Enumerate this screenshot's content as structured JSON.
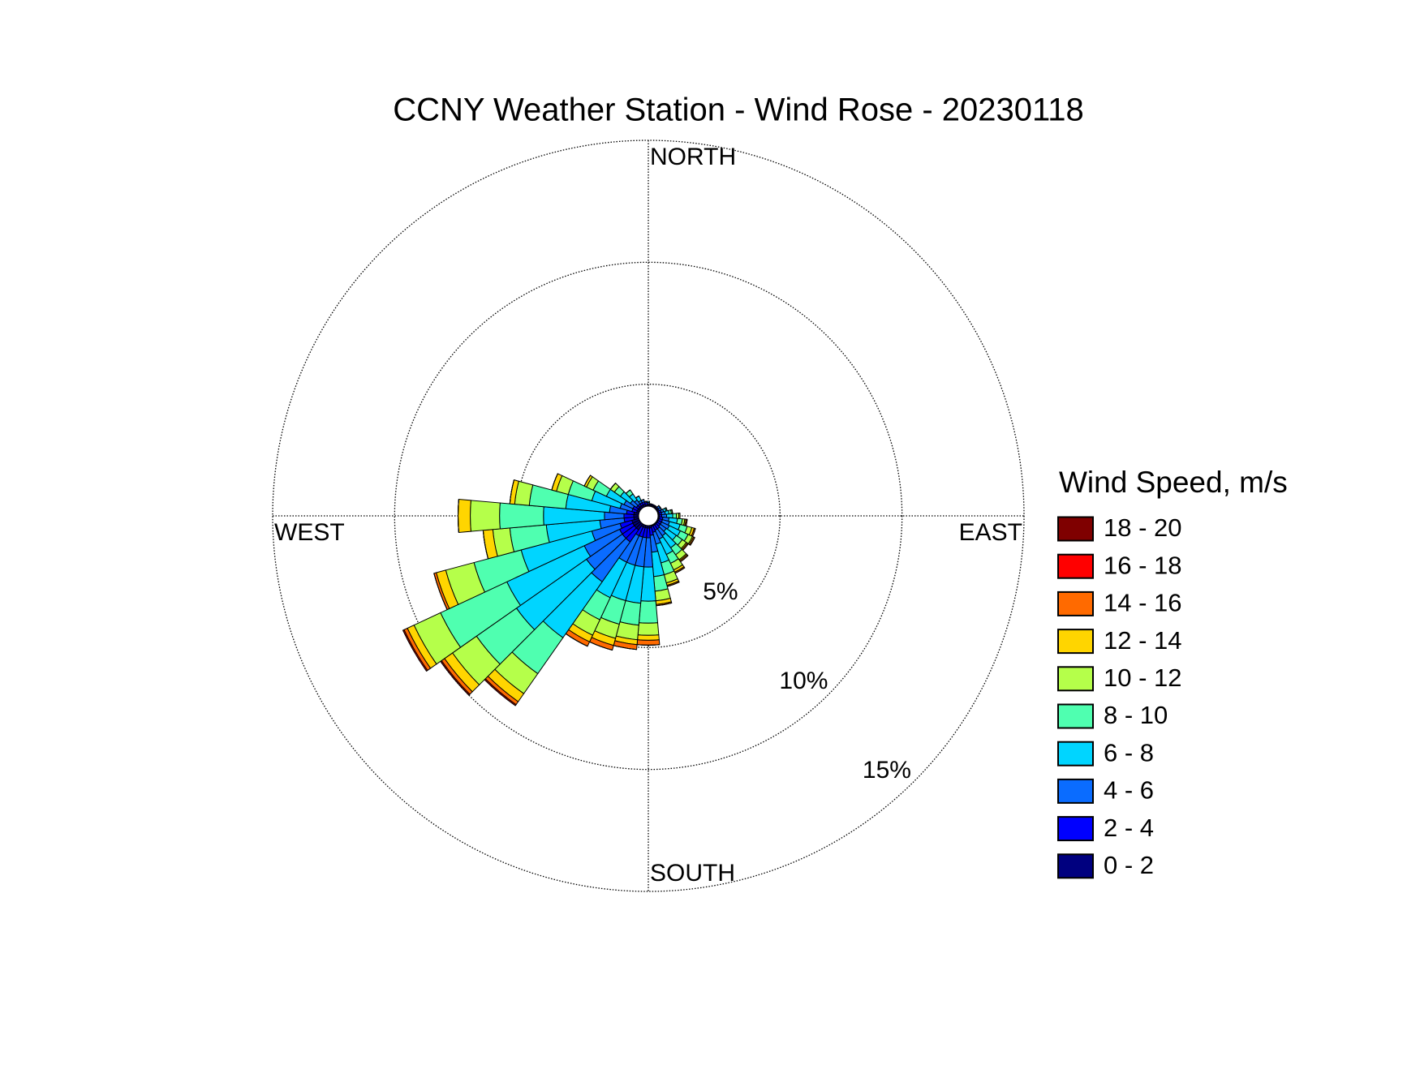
{
  "chart_data": {
    "type": "windrose",
    "title": "CCNY Weather Station - Wind Rose - 20230118",
    "x": [
      0,
      10,
      20,
      30,
      40,
      50,
      60,
      70,
      80,
      90,
      100,
      110,
      120,
      130,
      140,
      150,
      160,
      170,
      180,
      190,
      200,
      210,
      220,
      230,
      240,
      250,
      260,
      270,
      280,
      290,
      300,
      310,
      320,
      330,
      340,
      350
    ],
    "series": [
      {
        "name": "0 - 2",
        "color": "#00007f",
        "values": [
          0.05,
          0.05,
          0.05,
          0.05,
          0.05,
          0.05,
          0.05,
          0.05,
          0.05,
          0.05,
          0.05,
          0.05,
          0.05,
          0.05,
          0.05,
          0.05,
          0.05,
          0.1,
          0.1,
          0.1,
          0.1,
          0.1,
          0.3,
          0.3,
          0.3,
          0.3,
          0.2,
          0.2,
          0.2,
          0.1,
          0.1,
          0.1,
          0.1,
          0.1,
          0.1,
          0.05
        ]
      },
      {
        "name": "2 - 4",
        "color": "#0000ff",
        "values": [
          0.05,
          0.05,
          0.05,
          0.05,
          0.05,
          0.05,
          0.05,
          0.1,
          0.1,
          0.1,
          0.15,
          0.15,
          0.15,
          0.15,
          0.2,
          0.2,
          0.25,
          0.3,
          0.4,
          0.4,
          0.4,
          0.4,
          0.6,
          0.6,
          0.6,
          0.5,
          0.4,
          0.4,
          0.3,
          0.2,
          0.2,
          0.1,
          0.1,
          0.1,
          0.1,
          0.1
        ]
      },
      {
        "name": "4 - 6",
        "color": "#0a6cff",
        "values": [
          0.05,
          0,
          0,
          0,
          0,
          0.1,
          0.1,
          0.1,
          0.15,
          0.2,
          0.25,
          0.3,
          0.35,
          0.3,
          0.35,
          0.4,
          0.5,
          0.7,
          1.2,
          1.2,
          1.2,
          1.2,
          2.0,
          1.8,
          1.6,
          1.2,
          1.0,
          0.8,
          0.7,
          0.5,
          0.4,
          0.3,
          0.2,
          0.1,
          0.1,
          0.05
        ]
      },
      {
        "name": "6 - 8",
        "color": "#00d5ff",
        "values": [
          0.05,
          0,
          0,
          0,
          0,
          0,
          0,
          0.1,
          0.15,
          0.25,
          0.35,
          0.45,
          0.5,
          0.5,
          0.6,
          0.7,
          0.8,
          1.0,
          1.4,
          1.5,
          1.5,
          1.6,
          2.8,
          3.5,
          3.5,
          3.0,
          2.2,
          2.5,
          1.8,
          1.2,
          0.8,
          0.5,
          0.3,
          0.2,
          0,
          0
        ]
      },
      {
        "name": "8 - 10",
        "color": "#4fffb0",
        "values": [
          0,
          0,
          0,
          0,
          0,
          0,
          0,
          0.05,
          0.1,
          0.15,
          0.2,
          0.3,
          0.35,
          0.3,
          0.35,
          0.4,
          0.5,
          0.6,
          0.9,
          0.9,
          1.0,
          1.0,
          1.8,
          2.0,
          3.0,
          2.0,
          1.5,
          1.8,
          1.5,
          1.0,
          0.6,
          0.3,
          0.2,
          0,
          0,
          0
        ]
      },
      {
        "name": "10 - 12",
        "color": "#b5ff4a",
        "values": [
          0,
          0,
          0,
          0,
          0,
          0,
          0,
          0,
          0.05,
          0.1,
          0.1,
          0.2,
          0.2,
          0.2,
          0.25,
          0.3,
          0.35,
          0.4,
          0.5,
          0.6,
          0.6,
          0.7,
          1.0,
          1.2,
          1.2,
          1.2,
          0.7,
          1.2,
          0.6,
          0.5,
          0.3,
          0.2,
          0,
          0,
          0,
          0
        ]
      },
      {
        "name": "12 - 14",
        "color": "#ffd500",
        "values": [
          0,
          0,
          0,
          0,
          0,
          0,
          0,
          0,
          0,
          0.05,
          0.05,
          0.1,
          0.05,
          0.05,
          0.05,
          0.1,
          0.1,
          0.15,
          0.2,
          0.2,
          0.3,
          0.3,
          0.4,
          0.4,
          0.3,
          0.4,
          0.4,
          0.5,
          0.2,
          0.2,
          0.1,
          0,
          0,
          0,
          0,
          0
        ]
      },
      {
        "name": "14 - 16",
        "color": "#ff6a00",
        "values": [
          0,
          0,
          0,
          0,
          0,
          0,
          0,
          0,
          0,
          0,
          0.05,
          0.05,
          0.05,
          0.05,
          0.05,
          0.05,
          0.05,
          0.05,
          0.2,
          0.2,
          0.2,
          0.2,
          0.15,
          0.15,
          0.15,
          0.1,
          0,
          0,
          0,
          0,
          0,
          0,
          0,
          0,
          0,
          0
        ]
      },
      {
        "name": "16 - 18",
        "color": "#ff0000",
        "values": [
          0,
          0,
          0,
          0,
          0,
          0,
          0,
          0,
          0,
          0,
          0,
          0,
          0,
          0,
          0,
          0,
          0,
          0,
          0,
          0,
          0,
          0,
          0.05,
          0.05,
          0.05,
          0,
          0,
          0,
          0,
          0,
          0,
          0,
          0,
          0,
          0,
          0
        ]
      },
      {
        "name": "18 - 20",
        "color": "#7f0000",
        "values": [
          0,
          0,
          0,
          0,
          0,
          0,
          0,
          0,
          0,
          0,
          0,
          0,
          0,
          0,
          0,
          0,
          0,
          0,
          0,
          0,
          0,
          0,
          0,
          0,
          0,
          0,
          0,
          0,
          0,
          0,
          0,
          0,
          0,
          0,
          0,
          0
        ]
      }
    ],
    "rlim": [
      0,
      15
    ],
    "rticks": [
      {
        "value": 5,
        "label": "5%"
      },
      {
        "value": 10,
        "label": "10%"
      },
      {
        "value": 15,
        "label": "15%"
      }
    ],
    "direction_labels": [
      "NORTH",
      "EAST",
      "SOUTH",
      "WEST"
    ],
    "legend_title": "Wind Speed, m/s",
    "grid": true
  }
}
